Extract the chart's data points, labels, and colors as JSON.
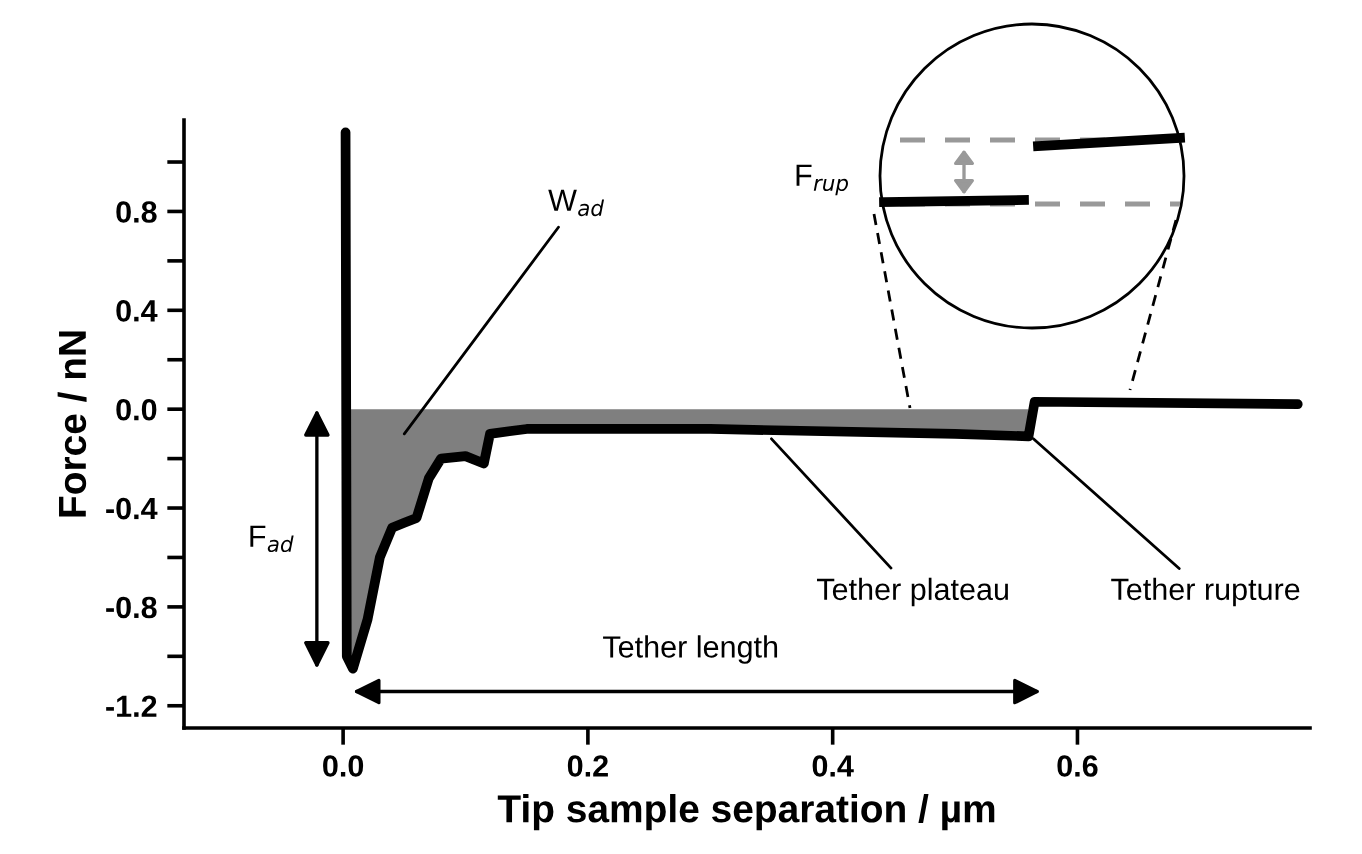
{
  "chart_data": {
    "type": "line",
    "xlabel": "Tip sample separation / µm",
    "ylabel": "Force / nN",
    "xlim": [
      -0.13,
      0.79
    ],
    "ylim": [
      -1.29,
      1.17
    ],
    "xticks": [
      {
        "value": 0,
        "label": "0.0"
      },
      0.2,
      0.4,
      0.6
    ],
    "yticks": [
      {
        "value": 1.0,
        "label": null
      },
      0.8,
      {
        "value": 0.6,
        "label": null
      },
      0.4,
      {
        "value": 0.2,
        "label": null
      },
      {
        "value": 0,
        "label": "0.0"
      },
      {
        "value": -0.2,
        "label": null
      },
      -0.4,
      {
        "value": -0.6,
        "label": null
      },
      -0.8,
      {
        "value": -1.0,
        "label": null
      },
      -1.2
    ],
    "grid": false,
    "legend": false,
    "marker": "none",
    "line_style": "solid",
    "series": [
      {
        "type": "area",
        "color": "#7f7f7f",
        "x": [
          0.003,
          0.008,
          0.02,
          0.03,
          0.04,
          0.05,
          0.06,
          0.07,
          0.08,
          0.1,
          0.115,
          0.12,
          0.15,
          0.3,
          0.5,
          0.56
        ],
        "values": [
          -1.0,
          -1.05,
          -0.85,
          -0.6,
          -0.48,
          -0.46,
          -0.44,
          -0.28,
          -0.2,
          -0.19,
          -0.22,
          -0.1,
          -0.08,
          -0.08,
          -0.1,
          -0.11
        ]
      },
      {
        "color": "#000000",
        "x": [
          0.002,
          0.003,
          0.008,
          0.02,
          0.03,
          0.04,
          0.05,
          0.06,
          0.07,
          0.08,
          0.1,
          0.115,
          0.12,
          0.15,
          0.3,
          0.5,
          0.56,
          0.565,
          0.78
        ],
        "values": [
          1.12,
          -1.0,
          -1.05,
          -0.85,
          -0.6,
          -0.48,
          -0.46,
          -0.44,
          -0.28,
          -0.2,
          -0.19,
          -0.22,
          -0.1,
          -0.08,
          -0.08,
          -0.1,
          -0.11,
          0.03,
          0.02
        ]
      }
    ],
    "annotations": [
      "W$_{ad}$",
      {
        "text": "Tether plateau",
        "x": 0.35,
        "y": -0.12
      },
      {
        "text": "Tether rupture",
        "x": 0.564,
        "y": -0.12
      },
      "F$_{ad}$",
      "Tether length",
      "F$_{rup}$"
    ]
  }
}
